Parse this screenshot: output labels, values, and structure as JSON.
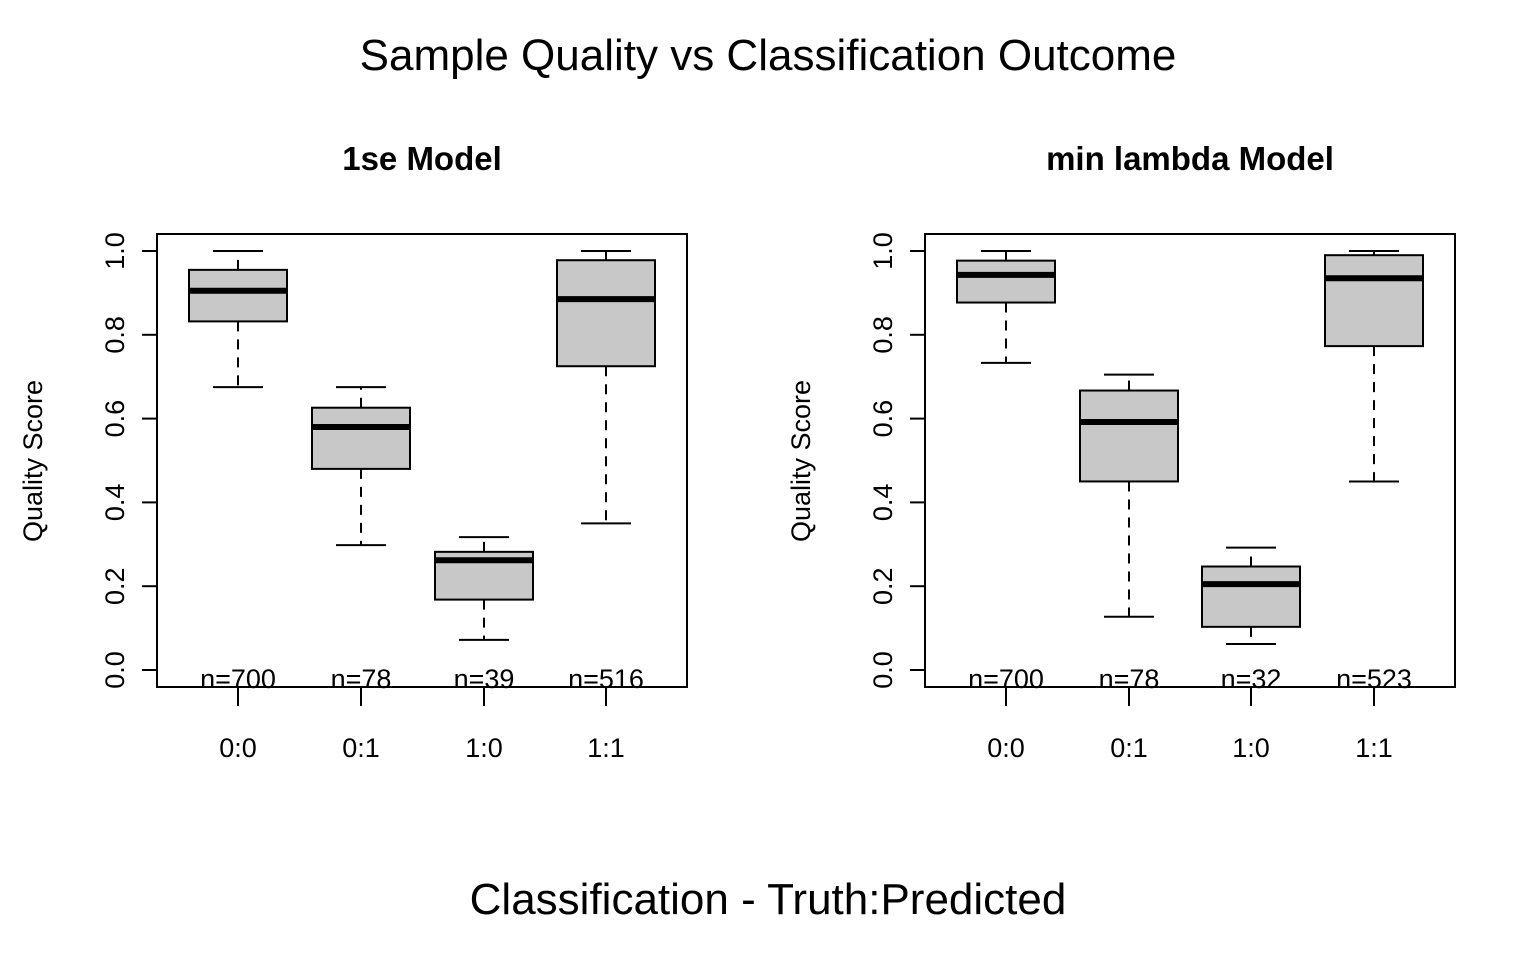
{
  "title": "Sample Quality vs Classification Outcome",
  "xlabel": "Classification - Truth:Predicted",
  "colors": {
    "box_fill": "#c8c8c8",
    "stroke": "#000000"
  },
  "chart_data": [
    {
      "type": "boxplot",
      "title": "1se Model",
      "ylabel": "Quality Score",
      "ylim": [
        0.0,
        1.0
      ],
      "yticks": [
        "0.0",
        "0.2",
        "0.4",
        "0.6",
        "0.8",
        "1.0"
      ],
      "categories": [
        "0:0",
        "0:1",
        "1:0",
        "1:1"
      ],
      "counts": [
        "n=700",
        "n=78",
        "n=39",
        "n=516"
      ],
      "boxes": [
        {
          "whisker_low": 0.675,
          "q1": 0.832,
          "median": 0.905,
          "q3": 0.955,
          "whisker_high": 1.0
        },
        {
          "whisker_low": 0.298,
          "q1": 0.48,
          "median": 0.58,
          "q3": 0.626,
          "whisker_high": 0.675
        },
        {
          "whisker_low": 0.072,
          "q1": 0.168,
          "median": 0.262,
          "q3": 0.282,
          "whisker_high": 0.317
        },
        {
          "whisker_low": 0.35,
          "q1": 0.725,
          "median": 0.885,
          "q3": 0.978,
          "whisker_high": 1.0
        }
      ]
    },
    {
      "type": "boxplot",
      "title": "min lambda Model",
      "ylabel": "Quality Score",
      "ylim": [
        0.0,
        1.0
      ],
      "yticks": [
        "0.0",
        "0.2",
        "0.4",
        "0.6",
        "0.8",
        "1.0"
      ],
      "categories": [
        "0:0",
        "0:1",
        "1:0",
        "1:1"
      ],
      "counts": [
        "n=700",
        "n=78",
        "n=32",
        "n=523"
      ],
      "boxes": [
        {
          "whisker_low": 0.733,
          "q1": 0.877,
          "median": 0.943,
          "q3": 0.977,
          "whisker_high": 1.0
        },
        {
          "whisker_low": 0.127,
          "q1": 0.45,
          "median": 0.592,
          "q3": 0.667,
          "whisker_high": 0.705
        },
        {
          "whisker_low": 0.062,
          "q1": 0.103,
          "median": 0.205,
          "q3": 0.247,
          "whisker_high": 0.292
        },
        {
          "whisker_low": 0.45,
          "q1": 0.773,
          "median": 0.935,
          "q3": 0.99,
          "whisker_high": 1.0
        }
      ]
    }
  ]
}
